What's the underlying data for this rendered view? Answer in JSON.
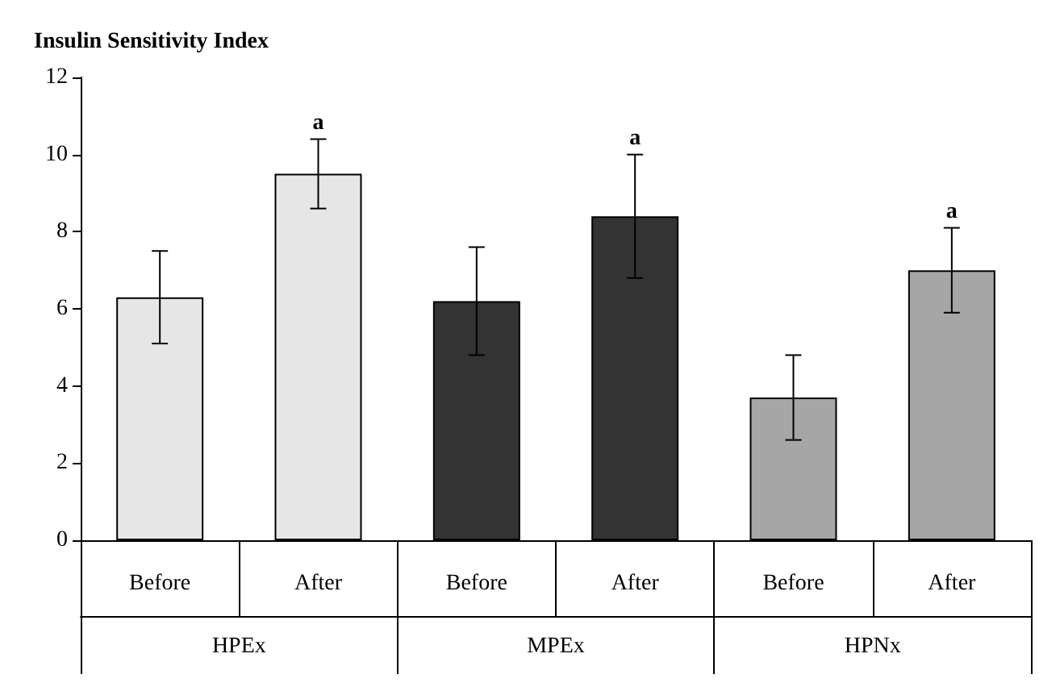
{
  "chart_data": {
    "type": "bar",
    "title": "Insulin Sensitivity Index",
    "categories": [
      "Before",
      "After",
      "Before",
      "After",
      "Before",
      "After"
    ],
    "values": [
      6.3,
      9.5,
      6.2,
      8.4,
      3.7,
      7.0
    ],
    "colors": [
      "#e6e6e6",
      "#e6e6e6",
      "#333333",
      "#333333",
      "#a6a6a6",
      "#a6a6a6"
    ],
    "errors": [
      1.2,
      0.9,
      1.4,
      1.6,
      1.1,
      1.1
    ],
    "value_labels": [
      null,
      "a",
      null,
      "a",
      null,
      "a"
    ],
    "annotations": [
      "HPEx",
      "MPEx",
      "HPNx"
    ],
    "ylim": [
      0,
      12
    ],
    "yticks": [
      0,
      2,
      4,
      6,
      8,
      10,
      12
    ],
    "grid": false
  }
}
